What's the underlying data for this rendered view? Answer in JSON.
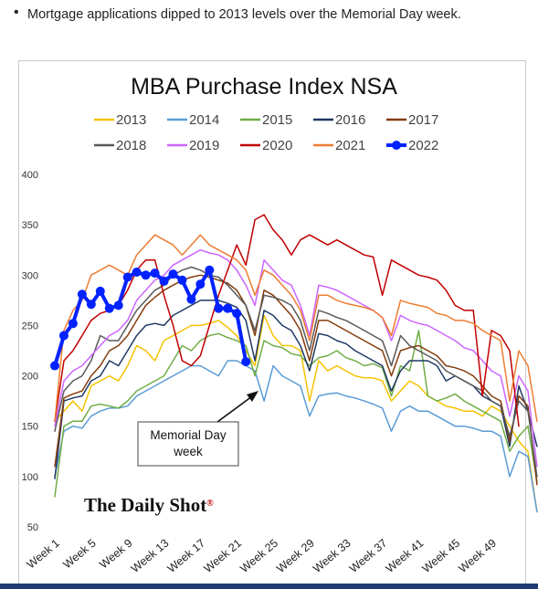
{
  "bullet_text": "Mortgage applications dipped to 2013 levels over the Memorial Day week.",
  "annotation": {
    "line1": "Memorial Day",
    "line2": "week"
  },
  "watermark": "The Daily Shot®",
  "colors": {
    "bottom_bar": "#203b73",
    "frame": "#c9c9c9"
  },
  "chart_data": {
    "type": "line",
    "title": "MBA Purchase Index NSA",
    "xlabel": "",
    "ylabel": "",
    "ylim": [
      50,
      400
    ],
    "yticks": [
      50,
      100,
      150,
      200,
      250,
      300,
      350,
      400
    ],
    "x_tick_labels": [
      "Week 1",
      "Week 5",
      "Week 9",
      "Week 13",
      "Week 17",
      "Week 21",
      "Week 25",
      "Week 29",
      "Week 33",
      "Week 37",
      "Week 41",
      "Week 45",
      "Week 49"
    ],
    "x_tick_weeks": [
      1,
      5,
      9,
      13,
      17,
      21,
      25,
      29,
      33,
      37,
      41,
      45,
      49
    ],
    "xlim": [
      1,
      52
    ],
    "legend_position": "top",
    "grid": false,
    "series": [
      {
        "name": "2013",
        "color": "#f5c200",
        "width": 1.5,
        "values": [
          155,
          165,
          175,
          165,
          190,
          195,
          200,
          195,
          210,
          230,
          225,
          215,
          235,
          240,
          245,
          250,
          250,
          252,
          255,
          248,
          240,
          225,
          210,
          260,
          240,
          230,
          230,
          225,
          175,
          215,
          205,
          210,
          205,
          200,
          198,
          198,
          195,
          175,
          185,
          195,
          190,
          180,
          175,
          170,
          168,
          165,
          165,
          160,
          170,
          165,
          150,
          135,
          125,
          65
        ]
      },
      {
        "name": "2014",
        "color": "#5b9bd5",
        "width": 1.5,
        "values": [
          100,
          145,
          150,
          148,
          160,
          165,
          168,
          168,
          170,
          180,
          185,
          190,
          195,
          200,
          205,
          210,
          210,
          205,
          200,
          215,
          215,
          210,
          205,
          175,
          210,
          200,
          195,
          190,
          160,
          180,
          182,
          183,
          180,
          178,
          175,
          172,
          168,
          145,
          165,
          170,
          165,
          165,
          160,
          155,
          150,
          150,
          148,
          145,
          145,
          140,
          100,
          125,
          120,
          65
        ]
      },
      {
        "name": "2015",
        "color": "#70ad47",
        "width": 1.5,
        "values": [
          80,
          150,
          155,
          155,
          170,
          172,
          170,
          168,
          175,
          185,
          190,
          195,
          200,
          215,
          230,
          225,
          235,
          240,
          242,
          238,
          235,
          230,
          200,
          235,
          230,
          228,
          222,
          220,
          210,
          218,
          220,
          225,
          218,
          215,
          210,
          212,
          208,
          180,
          210,
          205,
          245,
          180,
          175,
          178,
          182,
          175,
          170,
          165,
          160,
          155,
          125,
          140,
          150,
          95
        ]
      },
      {
        "name": "2016",
        "color": "#1f3864",
        "width": 1.5,
        "values": [
          98,
          175,
          178,
          180,
          195,
          200,
          215,
          210,
          225,
          240,
          250,
          252,
          250,
          260,
          265,
          270,
          275,
          275,
          275,
          272,
          268,
          255,
          215,
          265,
          260,
          250,
          245,
          230,
          205,
          242,
          240,
          235,
          232,
          225,
          220,
          215,
          210,
          185,
          205,
          215,
          215,
          215,
          210,
          195,
          200,
          195,
          190,
          180,
          175,
          170,
          130,
          190,
          165,
          130
        ]
      },
      {
        "name": "2017",
        "color": "#843c0c",
        "width": 1.5,
        "values": [
          110,
          178,
          182,
          185,
          200,
          210,
          225,
          230,
          240,
          255,
          270,
          278,
          285,
          290,
          295,
          298,
          300,
          298,
          295,
          292,
          285,
          270,
          240,
          285,
          280,
          270,
          260,
          245,
          215,
          255,
          255,
          250,
          245,
          240,
          235,
          230,
          225,
          200,
          225,
          228,
          230,
          225,
          220,
          210,
          208,
          205,
          200,
          190,
          180,
          175,
          135,
          180,
          170,
          92
        ]
      },
      {
        "name": "2018",
        "color": "#595959",
        "width": 1.5,
        "values": [
          145,
          185,
          195,
          200,
          215,
          240,
          235,
          235,
          250,
          265,
          275,
          285,
          290,
          300,
          305,
          308,
          305,
          300,
          298,
          290,
          280,
          270,
          245,
          280,
          278,
          275,
          270,
          255,
          225,
          265,
          262,
          258,
          255,
          250,
          245,
          240,
          235,
          210,
          240,
          230,
          225,
          220,
          215,
          205,
          200,
          195,
          190,
          185,
          175,
          170,
          140,
          175,
          165,
          100
        ]
      },
      {
        "name": "2019",
        "color": "#cc66ff",
        "width": 1.5,
        "values": [
          150,
          195,
          205,
          210,
          220,
          230,
          240,
          245,
          255,
          275,
          285,
          295,
          300,
          310,
          315,
          320,
          325,
          322,
          320,
          315,
          305,
          290,
          270,
          315,
          305,
          295,
          290,
          270,
          240,
          290,
          288,
          285,
          280,
          275,
          270,
          265,
          258,
          235,
          260,
          255,
          252,
          250,
          245,
          240,
          235,
          228,
          225,
          215,
          205,
          200,
          160,
          200,
          185,
          110
        ]
      },
      {
        "name": "2020",
        "color": "#c00000",
        "width": 1.5,
        "values": [
          155,
          215,
          225,
          240,
          255,
          262,
          265,
          270,
          285,
          305,
          315,
          315,
          280,
          250,
          215,
          210,
          220,
          250,
          280,
          305,
          330,
          310,
          355,
          360,
          345,
          335,
          320,
          335,
          340,
          335,
          330,
          335,
          330,
          325,
          320,
          318,
          280,
          315,
          310,
          305,
          300,
          298,
          295,
          285,
          270,
          265,
          265,
          180,
          245,
          240,
          225,
          150
        ]
      },
      {
        "name": "2021",
        "color": "#ed7d31",
        "width": 1.5,
        "values": [
          155,
          245,
          265,
          275,
          300,
          305,
          310,
          305,
          300,
          320,
          330,
          340,
          335,
          330,
          320,
          330,
          340,
          330,
          325,
          320,
          315,
          305,
          280,
          305,
          300,
          290,
          280,
          265,
          235,
          280,
          280,
          275,
          272,
          270,
          268,
          265,
          258,
          240,
          275,
          272,
          270,
          268,
          262,
          260,
          255,
          255,
          252,
          245,
          240,
          235,
          175,
          225,
          210,
          155
        ]
      },
      {
        "name": "2022",
        "color": "#0022ff",
        "width": 4,
        "markers": true,
        "values": [
          210,
          240,
          252,
          281,
          271,
          284,
          267,
          270,
          298,
          303,
          300,
          302,
          294,
          301,
          295,
          276,
          291,
          305,
          267,
          267,
          262,
          214
        ]
      }
    ]
  }
}
